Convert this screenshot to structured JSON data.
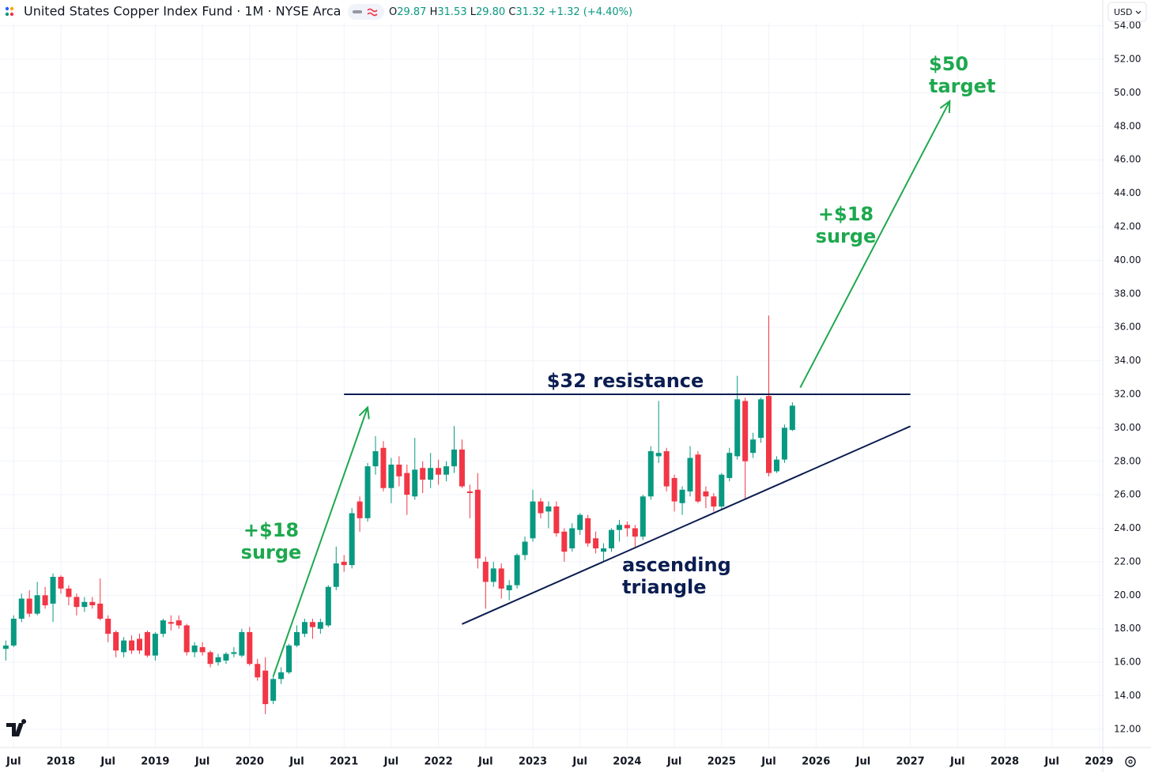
{
  "header": {
    "title": "United States Copper Index Fund · 1M · NYSE Arca",
    "ohlc": [
      {
        "label": "O",
        "value": "29.87"
      },
      {
        "label": "H",
        "value": "31.53"
      },
      {
        "label": "L",
        "value": "29.80"
      },
      {
        "label": "C",
        "value": "31.32"
      }
    ],
    "change": "+1.32 (+4.40%)",
    "currency": "USD"
  },
  "chart_data": {
    "type": "candlestick",
    "up_color": "#089981",
    "down_color": "#f23645",
    "grid": true,
    "x": [
      "2017-06",
      "2017-07",
      "2017-08",
      "2017-09",
      "2017-10",
      "2017-11",
      "2017-12",
      "2018-01",
      "2018-02",
      "2018-03",
      "2018-04",
      "2018-05",
      "2018-06",
      "2018-07",
      "2018-08",
      "2018-09",
      "2018-10",
      "2018-11",
      "2018-12",
      "2019-01",
      "2019-02",
      "2019-03",
      "2019-04",
      "2019-05",
      "2019-06",
      "2019-07",
      "2019-08",
      "2019-09",
      "2019-10",
      "2019-11",
      "2019-12",
      "2020-01",
      "2020-02",
      "2020-03",
      "2020-04",
      "2020-05",
      "2020-06",
      "2020-07",
      "2020-08",
      "2020-09",
      "2020-10",
      "2020-11",
      "2020-12",
      "2021-01",
      "2021-02",
      "2021-03",
      "2021-04",
      "2021-05",
      "2021-06",
      "2021-07",
      "2021-08",
      "2021-09",
      "2021-10",
      "2021-11",
      "2021-12",
      "2022-01",
      "2022-02",
      "2022-03",
      "2022-04",
      "2022-05",
      "2022-06",
      "2022-07",
      "2022-08",
      "2022-09",
      "2022-10",
      "2022-11",
      "2022-12",
      "2023-01",
      "2023-02",
      "2023-03",
      "2023-04",
      "2023-05",
      "2023-06",
      "2023-07",
      "2023-08",
      "2023-09",
      "2023-10",
      "2023-11",
      "2023-12",
      "2024-01",
      "2024-02",
      "2024-03",
      "2024-04",
      "2024-05",
      "2024-06",
      "2024-07",
      "2024-08",
      "2024-09",
      "2024-10",
      "2024-11",
      "2024-12",
      "2025-01",
      "2025-02",
      "2025-03",
      "2025-04",
      "2025-05",
      "2025-06",
      "2025-07",
      "2025-08",
      "2025-09",
      "2025-10"
    ],
    "open": [
      16.8,
      17.0,
      18.6,
      19.8,
      18.9,
      20.0,
      19.5,
      21.1,
      20.4,
      19.9,
      19.3,
      19.6,
      19.5,
      18.6,
      17.8,
      16.6,
      17.3,
      17.4,
      17.8,
      16.4,
      17.7,
      18.4,
      18.5,
      18.2,
      16.6,
      16.9,
      16.6,
      16.0,
      16.1,
      16.5,
      16.4,
      17.8,
      15.9,
      15.5,
      13.7,
      15.0,
      15.4,
      17.0,
      17.7,
      18.4,
      18.0,
      18.2,
      20.5,
      22.0,
      21.8,
      25.6,
      24.6,
      27.7,
      28.8,
      26.4,
      27.8,
      27.3,
      25.9,
      27.6,
      26.9,
      27.6,
      27.2,
      27.7,
      28.7,
      26.2,
      26.3,
      22.0,
      20.8,
      21.6,
      20.3,
      20.6,
      22.4,
      23.4,
      25.6,
      25.0,
      25.3,
      23.8,
      22.8,
      23.9,
      24.6,
      23.4,
      22.6,
      22.8,
      23.9,
      24.2,
      24.0,
      23.5,
      25.9,
      28.3,
      28.6,
      27.0,
      25.5,
      26.2,
      28.4,
      26.2,
      25.9,
      25.3,
      27.0,
      28.3,
      31.6,
      28.5,
      29.4,
      31.9,
      27.4,
      28.1,
      29.87
    ],
    "high": [
      17.3,
      18.8,
      20.1,
      20.3,
      20.8,
      20.5,
      21.3,
      21.2,
      20.6,
      20.1,
      19.9,
      19.9,
      21.0,
      18.8,
      17.9,
      17.5,
      17.6,
      17.7,
      17.9,
      17.8,
      18.6,
      18.8,
      18.8,
      18.3,
      17.2,
      17.2,
      16.7,
      16.5,
      16.6,
      16.9,
      18.0,
      18.1,
      16.2,
      16.3,
      15.2,
      15.7,
      17.1,
      18.2,
      18.6,
      18.6,
      18.6,
      20.6,
      22.9,
      22.4,
      25.2,
      25.9,
      27.9,
      29.5,
      29.2,
      28.2,
      28.3,
      27.8,
      29.4,
      28.0,
      28.5,
      28.1,
      28.0,
      30.1,
      29.3,
      26.6,
      27.3,
      22.3,
      22.0,
      21.9,
      20.9,
      22.5,
      23.5,
      26.3,
      25.8,
      25.6,
      25.6,
      24.0,
      24.3,
      24.9,
      24.8,
      23.8,
      23.1,
      24.0,
      24.5,
      24.4,
      24.2,
      26.0,
      28.9,
      31.6,
      28.8,
      27.2,
      26.5,
      28.9,
      28.6,
      26.5,
      26.1,
      27.3,
      28.8,
      33.1,
      31.8,
      29.7,
      31.8,
      36.7,
      28.3,
      30.2,
      31.53
    ],
    "low": [
      16.1,
      16.9,
      18.4,
      18.7,
      18.8,
      19.2,
      18.4,
      20.1,
      19.4,
      18.8,
      19.0,
      19.2,
      18.5,
      17.2,
      16.3,
      16.3,
      16.5,
      16.5,
      16.3,
      16.1,
      17.5,
      17.9,
      18.0,
      16.4,
      16.3,
      16.4,
      15.7,
      15.8,
      15.9,
      16.3,
      16.3,
      15.8,
      14.9,
      12.9,
      13.5,
      14.7,
      15.3,
      16.9,
      17.5,
      17.4,
      17.7,
      18.1,
      20.3,
      21.4,
      21.6,
      23.8,
      24.4,
      27.2,
      26.2,
      25.5,
      26.5,
      24.8,
      25.7,
      26.1,
      26.4,
      26.6,
      26.8,
      27.3,
      26.4,
      24.6,
      21.6,
      19.2,
      20.5,
      19.8,
      19.7,
      20.4,
      22.1,
      23.2,
      24.6,
      24.0,
      23.5,
      22.0,
      22.6,
      23.6,
      22.9,
      22.5,
      22.0,
      22.6,
      23.2,
      23.5,
      22.9,
      23.3,
      25.7,
      27.9,
      26.2,
      25.0,
      24.8,
      25.9,
      25.5,
      25.2,
      25.0,
      25.1,
      26.8,
      28.1,
      25.7,
      28.2,
      29.1,
      27.1,
      27.3,
      27.9,
      29.8
    ],
    "close": [
      17.0,
      18.6,
      19.8,
      18.9,
      20.0,
      19.4,
      21.1,
      20.4,
      19.9,
      19.3,
      19.6,
      19.4,
      18.6,
      17.7,
      16.7,
      17.3,
      16.7,
      16.7,
      16.4,
      17.7,
      18.5,
      18.3,
      18.2,
      16.6,
      17.0,
      16.6,
      15.9,
      16.3,
      16.5,
      16.6,
      17.8,
      15.9,
      15.1,
      13.5,
      15.0,
      15.4,
      17.0,
      17.8,
      18.4,
      18.1,
      18.4,
      20.5,
      21.9,
      21.8,
      24.9,
      24.6,
      27.7,
      28.6,
      26.4,
      27.8,
      27.1,
      26.0,
      27.5,
      26.9,
      27.6,
      27.2,
      27.7,
      28.7,
      26.5,
      26.1,
      22.2,
      20.8,
      21.6,
      20.4,
      20.6,
      22.4,
      23.2,
      25.6,
      24.9,
      25.3,
      23.7,
      22.6,
      24.0,
      24.8,
      23.1,
      22.8,
      22.8,
      23.9,
      24.2,
      24.0,
      23.5,
      25.9,
      28.6,
      28.5,
      26.5,
      25.6,
      26.3,
      28.2,
      25.6,
      25.9,
      25.3,
      27.2,
      28.5,
      31.7,
      28.0,
      29.3,
      31.7,
      27.3,
      28.1,
      30.0,
      31.32
    ],
    "xlim": [
      "2017-05",
      "2029-01"
    ],
    "ylim": [
      10.91,
      55.54
    ],
    "yticks": [
      {
        "value": 12,
        "label": "12.00"
      },
      {
        "value": 14,
        "label": "14.00"
      },
      {
        "value": 16,
        "label": "16.00"
      },
      {
        "value": 18,
        "label": "18.00"
      },
      {
        "value": 20,
        "label": "20.00"
      },
      {
        "value": 22,
        "label": "22.00"
      },
      {
        "value": 24,
        "label": "24.00"
      },
      {
        "value": 26,
        "label": "26.00"
      },
      {
        "value": 28,
        "label": "28.00"
      },
      {
        "value": 30,
        "label": "30.00"
      },
      {
        "value": 32,
        "label": "32.00"
      },
      {
        "value": 34,
        "label": "34.00"
      },
      {
        "value": 36,
        "label": "36.00"
      },
      {
        "value": 38,
        "label": "38.00"
      },
      {
        "value": 40,
        "label": "40.00"
      },
      {
        "value": 42,
        "label": "42.00"
      },
      {
        "value": 44,
        "label": "44.00"
      },
      {
        "value": 46,
        "label": "46.00"
      },
      {
        "value": 48,
        "label": "48.00"
      },
      {
        "value": 50,
        "label": "50.00"
      },
      {
        "value": 52,
        "label": "52.00"
      },
      {
        "value": 54,
        "label": "54.00"
      }
    ],
    "xticks": [
      {
        "value": "2017-07",
        "label": "Jul"
      },
      {
        "value": "2018-01",
        "label": "2018"
      },
      {
        "value": "2018-07",
        "label": "Jul"
      },
      {
        "value": "2019-01",
        "label": "2019"
      },
      {
        "value": "2019-07",
        "label": "Jul"
      },
      {
        "value": "2020-01",
        "label": "2020"
      },
      {
        "value": "2020-07",
        "label": "Jul"
      },
      {
        "value": "2021-01",
        "label": "2021"
      },
      {
        "value": "2021-07",
        "label": "Jul"
      },
      {
        "value": "2022-01",
        "label": "2022"
      },
      {
        "value": "2022-07",
        "label": "Jul"
      },
      {
        "value": "2023-01",
        "label": "2023"
      },
      {
        "value": "2023-07",
        "label": "Jul"
      },
      {
        "value": "2024-01",
        "label": "2024"
      },
      {
        "value": "2024-07",
        "label": "Jul"
      },
      {
        "value": "2025-01",
        "label": "2025"
      },
      {
        "value": "2025-07",
        "label": "Jul"
      },
      {
        "value": "2026-01",
        "label": "2026"
      },
      {
        "value": "2026-07",
        "label": "Jul"
      },
      {
        "value": "2027-01",
        "label": "2027"
      },
      {
        "value": "2027-07",
        "label": "Jul"
      },
      {
        "value": "2028-01",
        "label": "2028"
      },
      {
        "value": "2028-07",
        "label": "Jul"
      },
      {
        "value": "2029-01",
        "label": "2029"
      }
    ],
    "lines": [
      {
        "x": [
          "2021-01",
          "2027-01"
        ],
        "y": [
          32,
          32
        ],
        "color": "#0b1d51",
        "arrow": false
      },
      {
        "x": [
          "2022-04",
          "2027-01"
        ],
        "y": [
          18.28,
          30.09
        ],
        "color": "#0b1d51",
        "arrow": false
      },
      {
        "x": [
          "2020-04",
          "2021-04"
        ],
        "y": [
          15.16,
          31.22
        ],
        "color": "#1ea84e",
        "arrow": true
      },
      {
        "x": [
          "2025-11",
          "2027-06"
        ],
        "y": [
          32.4,
          49.5
        ],
        "color": "#1ea84e",
        "arrow": true
      }
    ],
    "annotations": [
      {
        "text": [
          "$32 resistance"
        ],
        "color": "#0b1d51"
      },
      {
        "text": [
          "ascending",
          "triangle"
        ],
        "color": "#0b1d51"
      },
      {
        "text": [
          "+$18",
          "surge"
        ],
        "color": "#1ea84e"
      },
      {
        "text": [
          "+$18",
          "surge"
        ],
        "color": "#1ea84e"
      },
      {
        "text": [
          "$50",
          "target"
        ],
        "color": "#1ea84e"
      }
    ]
  }
}
